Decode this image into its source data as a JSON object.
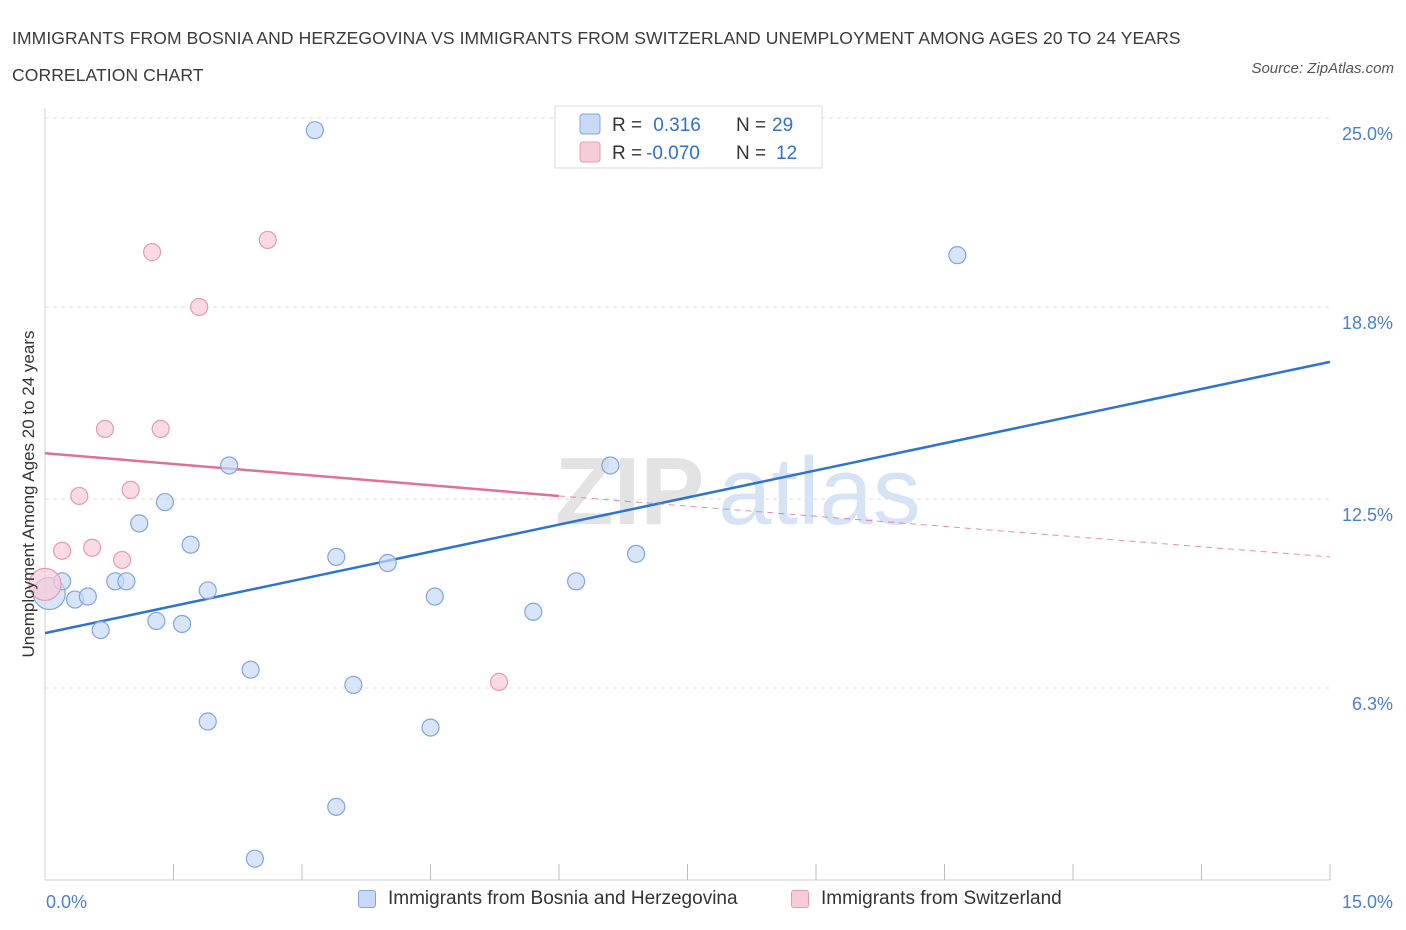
{
  "title": "IMMIGRANTS FROM BOSNIA AND HERZEGOVINA VS IMMIGRANTS FROM SWITZERLAND UNEMPLOYMENT AMONG AGES 20 TO 24 YEARS CORRELATION CHART",
  "source": "Source: ZipAtlas.com",
  "watermark": {
    "zip": "ZIP",
    "atlas": "atlas"
  },
  "colors": {
    "blue_fill": "#c7d9f4",
    "blue_stroke": "#7fa6dd",
    "blue_line": "#2e72d2",
    "pink_fill": "#f8cbd8",
    "pink_stroke": "#e79ab2",
    "pink_line": "#e07096"
  },
  "legend": {
    "rows": [
      {
        "r_label": "R = ",
        "r_value": " 0.316",
        "n_label": "N = ",
        "n_value": "29",
        "color": "blue"
      },
      {
        "r_label": "R = ",
        "r_value": "-0.070",
        "n_label": "N = ",
        "n_value": "12",
        "color": "pink"
      }
    ]
  },
  "chart_data": {
    "type": "scatter",
    "xlabel": "",
    "ylabel": "Unemployment Among Ages 20 to 24 years",
    "xlim": [
      0,
      15
    ],
    "ylim": [
      0,
      25
    ],
    "x_ticks": [
      {
        "value": 0,
        "label": "0.0%"
      },
      {
        "value": 15,
        "label": "15.0%"
      }
    ],
    "y_ticks": [
      {
        "value": 6.3,
        "label": "6.3%"
      },
      {
        "value": 12.5,
        "label": "12.5%"
      },
      {
        "value": 18.8,
        "label": "18.8%"
      },
      {
        "value": 25.0,
        "label": "25.0%"
      }
    ],
    "x_minor_ticks": [
      1.5,
      3.0,
      4.5,
      6.0,
      7.5,
      9.0,
      10.5,
      12.0,
      13.5,
      15.0
    ],
    "grid": "horizontal-dashed",
    "legend_placement": "top-center",
    "series": [
      {
        "name": "Immigrants from Bosnia and Herzegovina",
        "color": "blue",
        "points": [
          [
            0.05,
            9.4
          ],
          [
            0.2,
            9.8
          ],
          [
            0.35,
            9.2
          ],
          [
            0.5,
            9.3
          ],
          [
            0.65,
            8.2
          ],
          [
            0.82,
            9.8
          ],
          [
            0.95,
            9.8
          ],
          [
            1.1,
            11.7
          ],
          [
            1.3,
            8.5
          ],
          [
            1.4,
            12.4
          ],
          [
            1.6,
            8.4
          ],
          [
            1.7,
            11.0
          ],
          [
            1.9,
            9.5
          ],
          [
            2.15,
            13.6
          ],
          [
            2.4,
            6.9
          ],
          [
            1.9,
            5.2
          ],
          [
            2.45,
            0.7
          ],
          [
            3.15,
            24.6
          ],
          [
            3.4,
            10.6
          ],
          [
            3.4,
            2.4
          ],
          [
            3.6,
            6.4
          ],
          [
            4.0,
            10.4
          ],
          [
            4.5,
            5.0
          ],
          [
            4.55,
            9.3
          ],
          [
            5.7,
            8.8
          ],
          [
            6.2,
            9.8
          ],
          [
            6.6,
            13.6
          ],
          [
            6.9,
            10.7
          ],
          [
            10.65,
            20.5
          ]
        ],
        "trend": {
          "x": [
            0,
            15
          ],
          "y": [
            8.1,
            17.0
          ]
        }
      },
      {
        "name": "Immigrants from Switzerland",
        "color": "pink",
        "points": [
          [
            0.0,
            9.7
          ],
          [
            0.2,
            10.8
          ],
          [
            0.4,
            12.6
          ],
          [
            0.55,
            10.9
          ],
          [
            0.7,
            14.8
          ],
          [
            0.9,
            10.5
          ],
          [
            1.0,
            12.8
          ],
          [
            1.25,
            20.6
          ],
          [
            1.35,
            14.8
          ],
          [
            1.8,
            18.8
          ],
          [
            2.6,
            21.0
          ],
          [
            5.3,
            6.5
          ]
        ],
        "trend": {
          "x": [
            0,
            6.0
          ],
          "y": [
            14.0,
            12.6
          ]
        },
        "trend_dashed": {
          "x": [
            6.0,
            15
          ],
          "y": [
            12.6,
            10.6
          ]
        }
      }
    ]
  },
  "bottom_legend": [
    {
      "label": "Immigrants from Bosnia and Herzegovina",
      "color": "blue"
    },
    {
      "label": "Immigrants from Switzerland",
      "color": "pink"
    }
  ]
}
